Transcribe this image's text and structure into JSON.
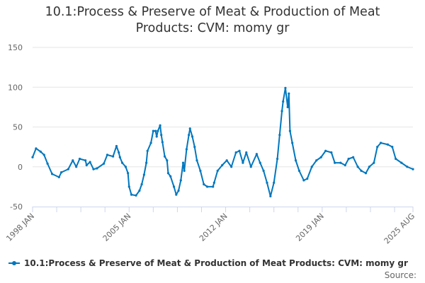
{
  "chart_data": {
    "type": "line",
    "title": "10.1:Process & Preserve of Meat & Production of Meat Products: CVM: momy gr",
    "xlabel": "",
    "ylabel": "",
    "ylim": [
      -50,
      150
    ],
    "yticks": [
      150,
      100,
      50,
      0,
      -50
    ],
    "xlim": [
      "1998 JAN",
      "2025 AUG"
    ],
    "xtick_labels": [
      "1998 JAN",
      "2005 JAN",
      "2012 JAN",
      "2019 JAN",
      "2025 AUG"
    ],
    "grid": true,
    "legend_position": "bottom",
    "color": "#0077be",
    "series": [
      {
        "name": "10.1:Process & Preserve of Meat & Production of Meat Products: CVM: momy gr",
        "x": [
          "1998 JAN",
          "1998 APR",
          "1998 AUG",
          "1998 NOV",
          "1999 FEB",
          "1999 JUN",
          "1999 DEC",
          "2000 FEB",
          "2000 AUG",
          "2000 DEC",
          "2001 MAR",
          "2001 JUN",
          "2001 NOV",
          "2001 DEC",
          "2002 MAR",
          "2002 JUN",
          "2002 SEP",
          "2003 MAR",
          "2003 JUN",
          "2003 NOV",
          "2004 FEB",
          "2004 APR",
          "2004 MAY",
          "2004 JUL",
          "2004 OCT",
          "2004 DEC",
          "2005 JAN",
          "2005 MAR",
          "2005 JUL",
          "2005 OCT",
          "2005 DEC",
          "2006 FEB",
          "2006 APR",
          "2006 MAY",
          "2006 AUG",
          "2006 OCT",
          "2006 DEC",
          "2007 JAN",
          "2007 FEB",
          "2007 APR",
          "2007 MAY",
          "2007 JUN",
          "2007 AUG",
          "2007 OCT",
          "2007 NOV",
          "2008 JAN",
          "2008 APR",
          "2008 JUN",
          "2008 AUG",
          "2008 OCT",
          "2008 DEC",
          "2009 JAN",
          "2009 MAR",
          "2009 MAY",
          "2009 JUN",
          "2009 AUG",
          "2009 OCT",
          "2009 DEC",
          "2010 MAR",
          "2010 JUN",
          "2010 SEP",
          "2011 FEB",
          "2011 MAR",
          "2011 JUN",
          "2011 OCT",
          "2012 FEB",
          "2012 JUN",
          "2012 OCT",
          "2013 JAN",
          "2013 APR",
          "2013 JUL",
          "2013 NOV",
          "2014 APR",
          "2014 JUL",
          "2014 OCT",
          "2015 JAN",
          "2015 APR",
          "2015 JUL",
          "2015 OCT",
          "2015 DEC",
          "2016 FEB",
          "2016 MAR",
          "2016 MAY",
          "2016 JUL",
          "2016 AUG",
          "2016 SEP",
          "2016 NOV",
          "2017 FEB",
          "2017 MAY",
          "2017 SEP",
          "2017 DEC",
          "2018 APR",
          "2018 AUG",
          "2018 DEC",
          "2019 APR",
          "2019 SEP",
          "2019 DEC",
          "2020 MAY",
          "2020 SEP",
          "2020 DEC",
          "2021 APR",
          "2021 AUG",
          "2021 NOV",
          "2022 MAR",
          "2022 JUN",
          "2022 OCT",
          "2023 JAN",
          "2023 APR",
          "2023 OCT",
          "2024 FEB",
          "2024 MAY",
          "2024 OCT",
          "2025 MAR",
          "2025 AUG"
        ],
        "values": [
          12,
          23,
          19,
          15,
          4,
          -9,
          -13,
          -7,
          -3,
          8,
          0,
          10,
          8,
          2,
          6,
          -3,
          -2,
          4,
          15,
          13,
          26,
          18,
          12,
          5,
          0,
          -8,
          -25,
          -35,
          -36,
          -30,
          -22,
          -10,
          5,
          20,
          30,
          45,
          45,
          38,
          45,
          52,
          40,
          31,
          13,
          8,
          -8,
          -12,
          -25,
          -35,
          -30,
          -17,
          5,
          -5,
          22,
          40,
          48,
          38,
          25,
          8,
          -5,
          -22,
          -25,
          -25,
          -20,
          -5,
          2,
          8,
          0,
          18,
          20,
          5,
          18,
          0,
          16,
          5,
          -5,
          -20,
          -37,
          -20,
          10,
          40,
          70,
          82,
          99,
          75,
          92,
          45,
          30,
          8,
          -5,
          -17,
          -15,
          0,
          8,
          12,
          20,
          18,
          5,
          5,
          2,
          10,
          12,
          0,
          -5,
          -8,
          0,
          5,
          25,
          30,
          28,
          25,
          10,
          5,
          0,
          -3
        ]
      }
    ]
  },
  "source_label": "Source:"
}
